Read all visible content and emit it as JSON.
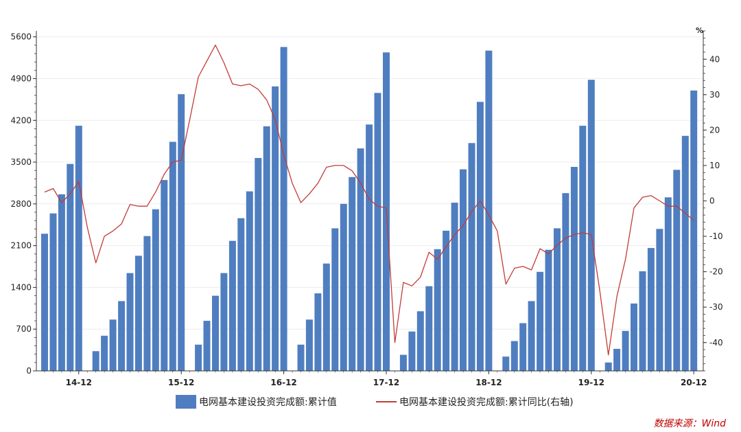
{
  "colors": {
    "bar": "#4F7EC0",
    "line": "#C23B36",
    "source": "#C00000"
  },
  "legend": {
    "bar_label": "电网基本建设投资完成额:累计值",
    "line_label": "电网基本建设投资完成额:累计同比(右轴)"
  },
  "source_text": "数据来源：Wind",
  "chart_data": {
    "type": "bar",
    "y_unit_right": "%",
    "left_axis": {
      "ticks": [
        "0",
        "700",
        "1400",
        "2100",
        "2800",
        "3500",
        "4200",
        "4900",
        "5600"
      ],
      "ylim": [
        0,
        5700
      ]
    },
    "right_axis": {
      "ticks": [
        "-40",
        "-30",
        "-20",
        "-10",
        "0",
        "10",
        "20",
        "30",
        "40"
      ],
      "ylim": [
        -48,
        48
      ]
    },
    "x_tick_labels": [
      "14-12",
      "15-12",
      "16-12",
      "17-12",
      "18-12",
      "19-12",
      "20-12"
    ],
    "grid": true,
    "series": [
      {
        "name": "电网基本建设投资完成额:累计值",
        "type": "bar",
        "axis": "left",
        "values": [
          2300,
          2640,
          2960,
          3470,
          4110,
          null,
          330,
          590,
          860,
          1170,
          1640,
          1930,
          2260,
          2710,
          3200,
          3840,
          4640,
          null,
          440,
          840,
          1260,
          1640,
          2180,
          2560,
          3010,
          3570,
          4100,
          4770,
          5430,
          null,
          440,
          860,
          1300,
          1800,
          2390,
          2800,
          3250,
          3730,
          4130,
          4660,
          5340,
          null,
          270,
          660,
          1000,
          1420,
          2040,
          2350,
          2820,
          3380,
          3820,
          4510,
          5370,
          null,
          240,
          500,
          800,
          1170,
          1660,
          2030,
          2390,
          2980,
          3420,
          4110,
          4880,
          null,
          140,
          370,
          670,
          1130,
          1670,
          2060,
          2380,
          2910,
          3370,
          3940,
          4700
        ]
      },
      {
        "name": "电网基本建设投资完成额:累计同比(右轴)",
        "type": "line",
        "axis": "right",
        "values": [
          2.5,
          3.5,
          -0.5,
          2,
          5.5,
          -7.5,
          -17.5,
          -10,
          -8.5,
          -6.5,
          -1,
          -1.5,
          -1.5,
          2.5,
          7.5,
          11,
          11.5,
          23,
          35,
          39.5,
          44,
          39,
          33,
          32.5,
          33,
          31.5,
          28.5,
          23,
          13,
          5,
          -0.5,
          2,
          5,
          9.5,
          10,
          10,
          8.5,
          5,
          0.5,
          -1.5,
          -2,
          -40,
          -23,
          -24,
          -21.5,
          -14.5,
          -16.5,
          -13,
          -9.5,
          -7,
          -3,
          0,
          -4,
          -8.5,
          -23.5,
          -19,
          -18.5,
          -19.5,
          -13.5,
          -15,
          -12.5,
          -10.5,
          -9.5,
          -9,
          -9.5,
          -25.5,
          -43.5,
          -27,
          -16.5,
          -2,
          1,
          1.5,
          0,
          -1.5,
          -1.5,
          -3.5,
          -5.5
        ]
      }
    ]
  }
}
